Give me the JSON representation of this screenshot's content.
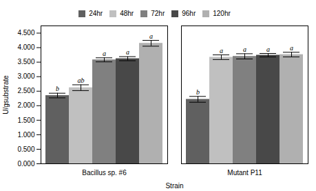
{
  "chart_data": {
    "type": "bar",
    "categories": [
      "Bacillus sp. #6",
      "Mutant P11"
    ],
    "series": [
      {
        "name": "24hr",
        "color": "#606060",
        "values": [
          2.35,
          2.22
        ],
        "errors": [
          0.08,
          0.1
        ],
        "annotations": [
          "b",
          "b"
        ]
      },
      {
        "name": "48hr",
        "color": "#c0c0c0",
        "values": [
          2.62,
          3.67
        ],
        "errors": [
          0.1,
          0.08
        ],
        "annotations": [
          "ab",
          "a"
        ]
      },
      {
        "name": "72hr",
        "color": "#808080",
        "values": [
          3.58,
          3.7
        ],
        "errors": [
          0.07,
          0.09
        ],
        "annotations": [
          "a",
          "a"
        ]
      },
      {
        "name": "96hr",
        "color": "#484848",
        "values": [
          3.62,
          3.74
        ],
        "errors": [
          0.07,
          0.06
        ],
        "annotations": [
          "a",
          "a"
        ]
      },
      {
        "name": "120hr",
        "color": "#b0b0b0",
        "values": [
          4.15,
          3.76
        ],
        "errors": [
          0.1,
          0.08
        ],
        "annotations": [
          "a",
          "a"
        ]
      }
    ],
    "xlabel": "Strain",
    "ylabel": "U/gsubstrate",
    "ylim": [
      0,
      4.75
    ],
    "yticks": [
      {
        "value": 0.0,
        "label": "0.000"
      },
      {
        "value": 0.5,
        "label": "0.500"
      },
      {
        "value": 1.0,
        "label": "1.000"
      },
      {
        "value": 1.5,
        "label": "1.500"
      },
      {
        "value": 2.0,
        "label": "2.000"
      },
      {
        "value": 2.5,
        "label": "2.500"
      },
      {
        "value": 3.0,
        "label": "3.000"
      },
      {
        "value": 3.5,
        "label": "3.500"
      },
      {
        "value": 4.0,
        "label": "4.000"
      },
      {
        "value": 4.5,
        "label": "4.500"
      }
    ],
    "legend": "upper center",
    "grid": false
  }
}
